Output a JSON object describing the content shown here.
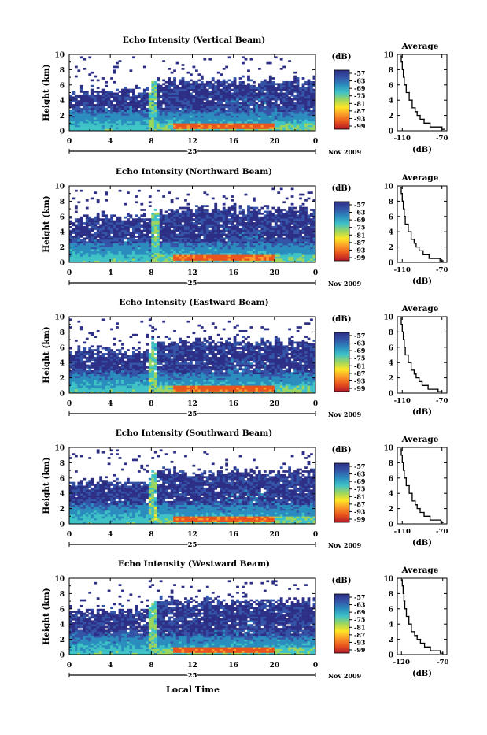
{
  "figure": {
    "xlabel_bottom": "Local Time",
    "date_label": "Nov 2009",
    "day_label": "25",
    "ylabel": "Height (km)",
    "colorbar_unit": "(dB)",
    "colorbar_ticks": [
      "-57",
      "-63",
      "-69",
      "-75",
      "-81",
      "-87",
      "-93",
      "-99"
    ],
    "colorbar_colors": [
      "#b2182b",
      "#e8541c",
      "#fb9a29",
      "#fde725",
      "#9bd560",
      "#3fc2c6",
      "#2b8cbe",
      "#3454a8",
      "#2d2f86"
    ],
    "avg_title": "Average",
    "avg_xlabel": "(dB)"
  },
  "chart_data": [
    {
      "type": "heatmap",
      "title": "Echo Intensity (Vertical Beam)",
      "x_ticks": [
        "0",
        "4",
        "8",
        "12",
        "16",
        "20",
        "0"
      ],
      "xlim": [
        0,
        24
      ],
      "y_ticks": [
        "0",
        "2",
        "4",
        "6",
        "8",
        "10"
      ],
      "ylim": [
        0,
        10
      ],
      "colorbar_range": [
        -99,
        -57
      ],
      "rain_event_hour": 8.0,
      "bright_band_height_km": 0.5,
      "echo_top_km": 5.5,
      "average_profile": {
        "title": "Average",
        "x_ticks": [
          "-110",
          "-70"
        ],
        "xlim": [
          -115,
          -65
        ],
        "ylim": [
          0,
          10
        ],
        "height_km": [
          0.2,
          0.5,
          1.0,
          1.5,
          2.0,
          2.5,
          3.0,
          4.0,
          5.0,
          6.0,
          7.0,
          8.0,
          9.0,
          9.8
        ],
        "db": [
          -68,
          -70,
          -82,
          -88,
          -92,
          -95,
          -97,
          -100,
          -103,
          -106,
          -108,
          -109,
          -110,
          -111
        ]
      }
    },
    {
      "type": "heatmap",
      "title": "Echo Intensity (Northward Beam)",
      "x_ticks": [
        "0",
        "4",
        "8",
        "12",
        "16",
        "20",
        "0"
      ],
      "xlim": [
        0,
        24
      ],
      "y_ticks": [
        "0",
        "2",
        "4",
        "6",
        "8",
        "10"
      ],
      "ylim": [
        0,
        10
      ],
      "colorbar_range": [
        -99,
        -57
      ],
      "rain_event_hour": 8.2,
      "bright_band_height_km": 0.5,
      "echo_top_km": 6.0,
      "average_profile": {
        "title": "Average",
        "x_ticks": [
          "-110",
          "-70"
        ],
        "xlim": [
          -115,
          -65
        ],
        "ylim": [
          0,
          10
        ],
        "height_km": [
          0.2,
          0.5,
          1.0,
          1.5,
          2.0,
          2.5,
          3.0,
          4.0,
          5.0,
          6.0,
          7.0,
          8.0,
          9.0,
          9.8
        ],
        "db": [
          -69,
          -72,
          -83,
          -89,
          -93,
          -96,
          -98,
          -101,
          -104,
          -107,
          -108,
          -109,
          -110,
          -111
        ]
      }
    },
    {
      "type": "heatmap",
      "title": "Echo Intensity (Eastward Beam)",
      "x_ticks": [
        "0",
        "4",
        "8",
        "12",
        "16",
        "20",
        "0"
      ],
      "xlim": [
        0,
        24
      ],
      "y_ticks": [
        "0",
        "2",
        "4",
        "6",
        "8",
        "10"
      ],
      "ylim": [
        0,
        10
      ],
      "colorbar_range": [
        -99,
        -57
      ],
      "rain_event_hour": 8.0,
      "bright_band_height_km": 0.5,
      "echo_top_km": 5.8,
      "average_profile": {
        "title": "Average",
        "x_ticks": [
          "-110",
          "-70"
        ],
        "xlim": [
          -115,
          -65
        ],
        "ylim": [
          0,
          10
        ],
        "height_km": [
          0.2,
          0.5,
          1.0,
          1.5,
          2.0,
          2.5,
          3.0,
          4.0,
          5.0,
          6.0,
          7.0,
          8.0,
          9.0,
          9.8
        ],
        "db": [
          -70,
          -74,
          -84,
          -90,
          -93,
          -96,
          -98,
          -101,
          -104,
          -107,
          -108,
          -109,
          -110,
          -111
        ]
      }
    },
    {
      "type": "heatmap",
      "title": "Echo Intensity (Southward Beam)",
      "x_ticks": [
        "0",
        "4",
        "8",
        "12",
        "16",
        "20",
        "0"
      ],
      "xlim": [
        0,
        24
      ],
      "y_ticks": [
        "0",
        "2",
        "4",
        "6",
        "8",
        "10"
      ],
      "ylim": [
        0,
        10
      ],
      "colorbar_range": [
        -99,
        -57
      ],
      "rain_event_hour": 8.0,
      "bright_band_height_km": 0.5,
      "echo_top_km": 5.8,
      "average_profile": {
        "title": "Average",
        "x_ticks": [
          "-110",
          "-70"
        ],
        "xlim": [
          -115,
          -65
        ],
        "ylim": [
          0,
          10
        ],
        "height_km": [
          0.2,
          0.5,
          1.0,
          1.5,
          2.0,
          2.5,
          3.0,
          4.0,
          5.0,
          6.0,
          7.0,
          8.0,
          9.0,
          9.8
        ],
        "db": [
          -69,
          -71,
          -82,
          -88,
          -92,
          -95,
          -97,
          -100,
          -103,
          -106,
          -108,
          -109,
          -110,
          -111
        ]
      }
    },
    {
      "type": "heatmap",
      "title": "Echo Intensity (Westward Beam)",
      "x_ticks": [
        "0",
        "4",
        "8",
        "12",
        "16",
        "20",
        "0"
      ],
      "xlim": [
        0,
        24
      ],
      "y_ticks": [
        "0",
        "2",
        "4",
        "6",
        "8",
        "10"
      ],
      "ylim": [
        0,
        10
      ],
      "colorbar_range": [
        -99,
        -57
      ],
      "rain_event_hour": 8.0,
      "bright_band_height_km": 0.5,
      "echo_top_km": 6.0,
      "average_profile": {
        "title": "Average",
        "x_ticks": [
          "-120",
          "-70"
        ],
        "xlim": [
          -125,
          -65
        ],
        "ylim": [
          0,
          10
        ],
        "height_km": [
          0.2,
          0.5,
          1.0,
          1.5,
          2.0,
          2.5,
          3.0,
          4.0,
          5.0,
          6.0,
          7.0,
          8.0,
          9.0,
          9.8
        ],
        "db": [
          -70,
          -73,
          -85,
          -92,
          -97,
          -101,
          -104,
          -108,
          -111,
          -114,
          -116,
          -117,
          -118,
          -119
        ]
      }
    }
  ]
}
